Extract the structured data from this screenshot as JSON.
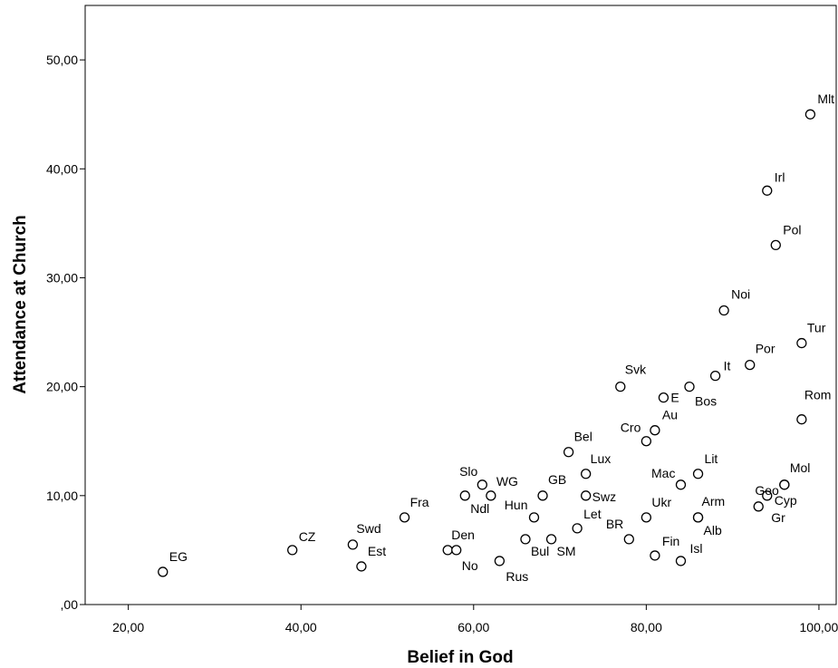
{
  "chart_data": {
    "type": "scatter",
    "xlabel": "Belief in God",
    "ylabel": "Attendance at Church",
    "xlim": [
      15,
      102
    ],
    "ylim": [
      0,
      55
    ],
    "x_ticks": [
      20,
      40,
      60,
      80,
      100
    ],
    "x_tick_labels": [
      "20,00",
      "40,00",
      "60,00",
      "80,00",
      "100,00"
    ],
    "y_ticks": [
      0,
      10,
      20,
      30,
      40,
      50
    ],
    "y_tick_labels": [
      ",00",
      "10,00",
      "20,00",
      "30,00",
      "40,00",
      "50,00"
    ],
    "grid": false,
    "marker_color": "#000000",
    "points": [
      {
        "label": "Mlt",
        "x": 99,
        "y": 45
      },
      {
        "label": "Irl",
        "x": 94,
        "y": 38
      },
      {
        "label": "Pol",
        "x": 95,
        "y": 33
      },
      {
        "label": "Noi",
        "x": 89,
        "y": 27
      },
      {
        "label": "Tur",
        "x": 98,
        "y": 24
      },
      {
        "label": "Por",
        "x": 92,
        "y": 22
      },
      {
        "label": "It",
        "x": 88,
        "y": 21
      },
      {
        "label": "Svk",
        "x": 77,
        "y": 20
      },
      {
        "label": "E",
        "x": 82,
        "y": 19
      },
      {
        "label": "Bos",
        "x": 85,
        "y": 20
      },
      {
        "label": "Rom",
        "x": 98,
        "y": 17
      },
      {
        "label": "Au",
        "x": 81,
        "y": 16
      },
      {
        "label": "Cro",
        "x": 80,
        "y": 15
      },
      {
        "label": "Bel",
        "x": 71,
        "y": 14
      },
      {
        "label": "Lux",
        "x": 73,
        "y": 12
      },
      {
        "label": "Lit",
        "x": 86,
        "y": 12
      },
      {
        "label": "Mac",
        "x": 84,
        "y": 11
      },
      {
        "label": "Geo",
        "x": 96,
        "y": 11
      },
      {
        "label": "Mol",
        "x": 96,
        "y": 11
      },
      {
        "label": "Slo",
        "x": 61,
        "y": 11
      },
      {
        "label": "WG",
        "x": 62,
        "y": 10
      },
      {
        "label": "Ndl",
        "x": 59,
        "y": 10
      },
      {
        "label": "GB",
        "x": 68,
        "y": 10
      },
      {
        "label": "Swz",
        "x": 73,
        "y": 10
      },
      {
        "label": "Cyp",
        "x": 94,
        "y": 10
      },
      {
        "label": "Gr",
        "x": 93,
        "y": 9
      },
      {
        "label": "Hun",
        "x": 67,
        "y": 8
      },
      {
        "label": "Fra",
        "x": 52,
        "y": 8
      },
      {
        "label": "Ukr",
        "x": 80,
        "y": 8
      },
      {
        "label": "Arm",
        "x": 86,
        "y": 8
      },
      {
        "label": "Alb",
        "x": 86,
        "y": 8
      },
      {
        "label": "Let",
        "x": 72,
        "y": 7
      },
      {
        "label": "BR",
        "x": 78,
        "y": 6
      },
      {
        "label": "Bul",
        "x": 66,
        "y": 6
      },
      {
        "label": "SM",
        "x": 69,
        "y": 6
      },
      {
        "label": "Swd",
        "x": 46,
        "y": 5.5
      },
      {
        "label": "CZ",
        "x": 39,
        "y": 5
      },
      {
        "label": "Den",
        "x": 57,
        "y": 5
      },
      {
        "label": "No",
        "x": 58,
        "y": 5
      },
      {
        "label": "Fin",
        "x": 81,
        "y": 4.5
      },
      {
        "label": "Isl",
        "x": 84,
        "y": 4
      },
      {
        "label": "Rus",
        "x": 63,
        "y": 4
      },
      {
        "label": "Est",
        "x": 47,
        "y": 3.5
      },
      {
        "label": "EG",
        "x": 24,
        "y": 3
      }
    ]
  }
}
